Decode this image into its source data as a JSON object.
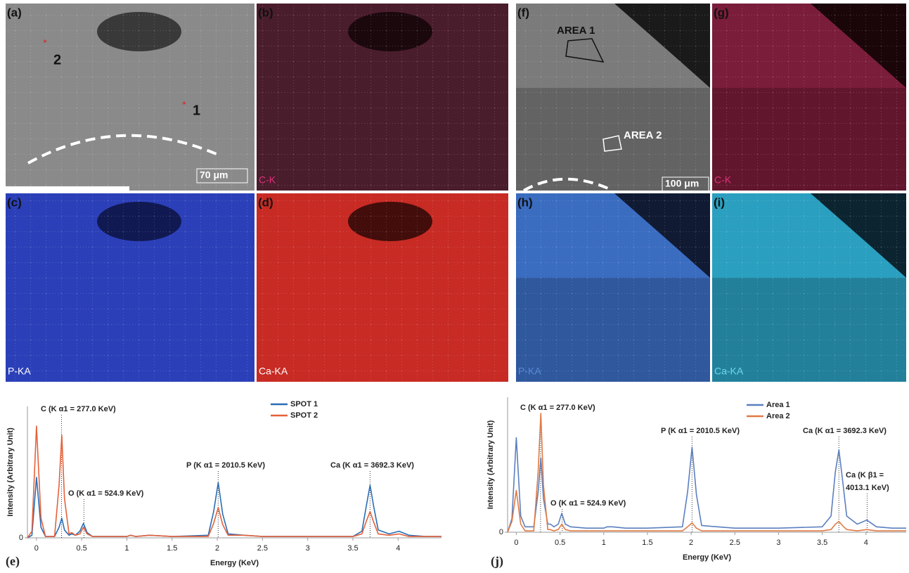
{
  "panels": [
    {
      "label": "(a)",
      "annotations": [
        "2",
        "1"
      ],
      "scale": "70 μm"
    },
    {
      "label": "(b)",
      "tag": "C-K"
    },
    {
      "label": "(c)",
      "tag": "P-KA"
    },
    {
      "label": "(d)",
      "tag": "Ca-KA"
    },
    {
      "label": "(f)",
      "annotations": [
        "AREA 1",
        "AREA 2"
      ],
      "scale": "100 μm"
    },
    {
      "label": "(g)",
      "tag": "C-K"
    },
    {
      "label": "(h)",
      "tag": "P-KA"
    },
    {
      "label": "(i)",
      "tag": "Ca-KA"
    }
  ],
  "chart_data": [
    {
      "type": "line",
      "label": "(e)",
      "x_label": "Energy (KeV)",
      "y_label": "Intensity (Arbitrary Unit)",
      "x": [
        -0.1,
        -0.05,
        0,
        0.05,
        0.1,
        0.2,
        0.25,
        0.28,
        0.31,
        0.36,
        0.39,
        0.43,
        0.48,
        0.52,
        0.56,
        0.62,
        0.8,
        1.0,
        1.04,
        1.1,
        1.25,
        1.5,
        1.9,
        1.96,
        2.01,
        2.06,
        2.12,
        2.3,
        2.5,
        3.0,
        3.5,
        3.6,
        3.65,
        3.69,
        3.73,
        3.78,
        3.9,
        4.01,
        4.12,
        4.3,
        4.48
      ],
      "series": [
        {
          "name": "SPOT 1",
          "color": "#2a6db5",
          "values": [
            0,
            2,
            46,
            8,
            1,
            1,
            8,
            15,
            6,
            2,
            3,
            2,
            5,
            11,
            4,
            1,
            1,
            1,
            2,
            1,
            2,
            1,
            2,
            20,
            42,
            18,
            3,
            2,
            1,
            1,
            1,
            5,
            25,
            40,
            24,
            6,
            3,
            5,
            2,
            1,
            1
          ]
        },
        {
          "name": "SPOT 2",
          "color": "#e4623c",
          "values": [
            0,
            5,
            85,
            15,
            1,
            1,
            40,
            78,
            30,
            3,
            4,
            2,
            3,
            8,
            3,
            1,
            1,
            1,
            2,
            1,
            2,
            1,
            1,
            11,
            23,
            10,
            2,
            2,
            1,
            1,
            1,
            3,
            13,
            20,
            12,
            3,
            2,
            3,
            1,
            1,
            1
          ]
        }
      ],
      "annotations": [
        {
          "lines": [
            "C (K α1 = 277.0 KeV)"
          ],
          "x": 0.277
        },
        {
          "lines": [
            "O (K α1 = 524.9 KeV)"
          ],
          "x": 0.525
        },
        {
          "lines": [
            "P (K α1 = 2010.5 KeV)"
          ],
          "x": 2.01
        },
        {
          "lines": [
            "Ca (K α1 = 3692.3 KeV)"
          ],
          "x": 3.69
        }
      ],
      "xlim": [
        -0.1,
        4.48
      ],
      "ylim": [
        0,
        100
      ],
      "xticks": [
        0,
        0.5,
        1,
        1.5,
        2,
        2.5,
        3,
        3.5,
        4
      ],
      "yticks": [
        0
      ]
    },
    {
      "type": "line",
      "label": "(j)",
      "x_label": "Energy (KeV)",
      "y_label": "Intensity (Arbitrary Unit)",
      "x": [
        -0.1,
        -0.05,
        0,
        0.05,
        0.1,
        0.2,
        0.25,
        0.28,
        0.31,
        0.36,
        0.39,
        0.43,
        0.48,
        0.52,
        0.56,
        0.62,
        0.8,
        1.0,
        1.04,
        1.1,
        1.25,
        1.5,
        1.9,
        1.96,
        2.01,
        2.06,
        2.12,
        2.3,
        2.5,
        3.0,
        3.5,
        3.6,
        3.65,
        3.69,
        3.73,
        3.78,
        3.9,
        4.01,
        4.12,
        4.3,
        4.46
      ],
      "series": [
        {
          "name": "Area 1",
          "color": "#5b7fbf",
          "values": [
            0,
            10,
            70,
            12,
            4,
            4,
            30,
            55,
            25,
            6,
            6,
            4,
            6,
            14,
            6,
            4,
            3,
            3,
            4,
            4,
            3,
            3,
            4,
            30,
            63,
            28,
            5,
            4,
            3,
            3,
            4,
            12,
            45,
            61,
            40,
            12,
            6,
            9,
            4,
            3,
            3
          ]
        },
        {
          "name": "Area 2",
          "color": "#e07a45",
          "values": [
            0,
            8,
            31,
            6,
            1,
            1,
            45,
            88,
            35,
            2,
            2,
            1,
            2,
            6,
            2,
            1,
            1,
            1,
            1,
            1,
            1,
            1,
            1,
            4,
            7,
            3,
            1,
            1,
            1,
            1,
            1,
            2,
            6,
            8,
            5,
            2,
            1,
            2,
            1,
            1,
            1
          ]
        }
      ],
      "annotations": [
        {
          "lines": [
            "C (K α1 = 277.0 KeV)"
          ],
          "x": 0.277
        },
        {
          "lines": [
            "O (K α1 = 524.9 KeV)"
          ],
          "x": 0.525
        },
        {
          "lines": [
            "P (K α1 = 2010.5 KeV)"
          ],
          "x": 2.01
        },
        {
          "lines": [
            "Ca (K α1 = 3692.3 KeV)"
          ],
          "x": 3.69
        },
        {
          "lines": [
            "Ca (K β1 =",
            "4013.1 KeV)"
          ],
          "x": 4.013
        }
      ],
      "xlim": [
        -0.1,
        4.46
      ],
      "ylim": [
        0,
        100
      ],
      "xticks": [
        0,
        0.5,
        1,
        1.5,
        2,
        2.5,
        3,
        3.5,
        4
      ],
      "yticks": [
        0
      ]
    }
  ]
}
